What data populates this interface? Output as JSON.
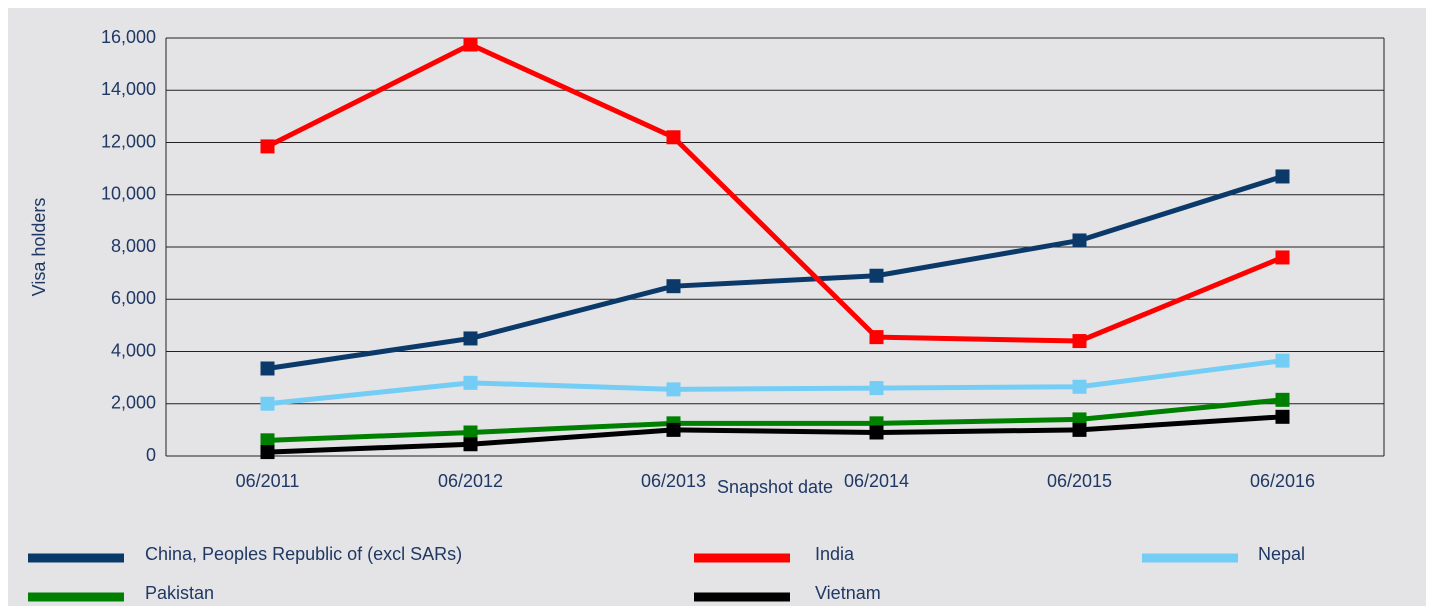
{
  "chart_data": {
    "type": "line",
    "x_label": "Snapshot date",
    "y_label": "Visa holders",
    "categories": [
      "06/2011",
      "06/2012",
      "06/2013",
      "06/2014",
      "06/2015",
      "06/2016"
    ],
    "series": [
      {
        "name": "China, Peoples Republic of (excl SARs)",
        "color": "#0b3a6a",
        "values": [
          3350,
          4500,
          6500,
          6900,
          8250,
          10700
        ]
      },
      {
        "name": "India",
        "color": "#ff0000",
        "values": [
          11850,
          15750,
          12200,
          4550,
          4400,
          7600
        ]
      },
      {
        "name": "Nepal",
        "color": "#74cdf5",
        "values": [
          2000,
          2800,
          2550,
          2600,
          2650,
          3650
        ]
      },
      {
        "name": "Pakistan",
        "color": "#008000",
        "values": [
          600,
          900,
          1250,
          1250,
          1400,
          2150
        ]
      },
      {
        "name": "Vietnam",
        "color": "#000000",
        "values": [
          150,
          450,
          1000,
          900,
          1000,
          1500
        ]
      }
    ],
    "ylim": [
      0,
      16000
    ],
    "yticks": [
      0,
      {
        "value": 2000,
        "label": "2,000"
      },
      {
        "value": 4000,
        "label": "4,000"
      },
      {
        "value": 6000,
        "label": "6,000"
      },
      {
        "value": 8000,
        "label": "8,000"
      },
      {
        "value": 10000,
        "label": "10,000"
      },
      {
        "value": 12000,
        "label": "12,000"
      },
      {
        "value": 14000,
        "label": "14,000"
      },
      {
        "value": 16000,
        "label": "16,000"
      }
    ],
    "grid": true
  }
}
